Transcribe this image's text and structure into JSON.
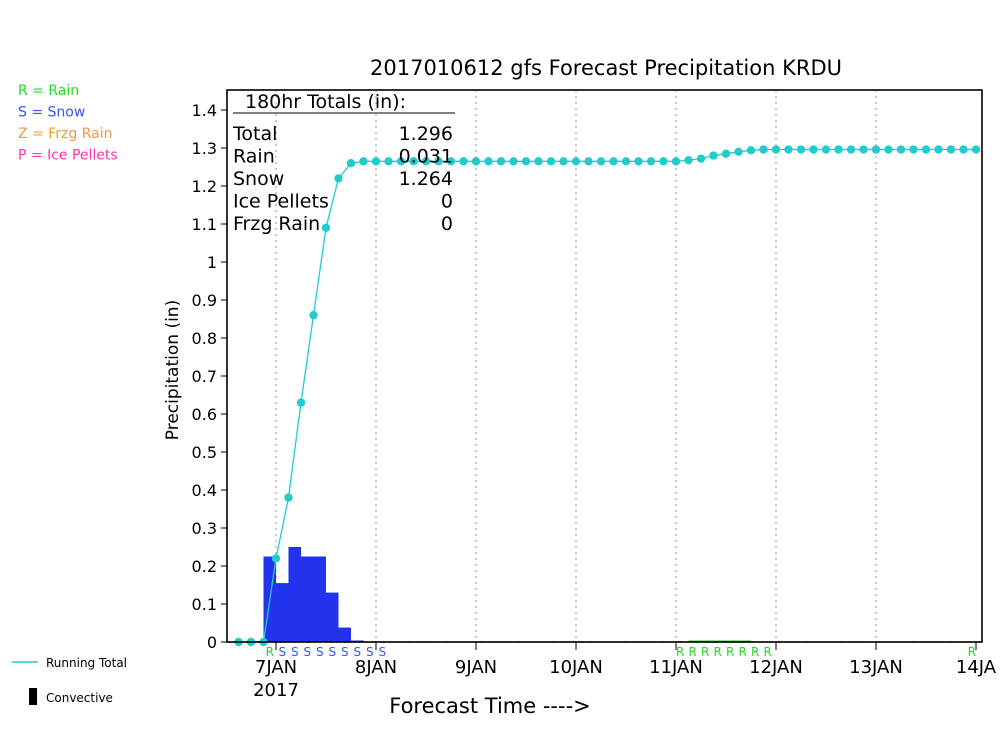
{
  "chart_data": {
    "type": "line",
    "title": "2017010612 gfs Forecast Precipitation KRDU",
    "xlabel": "Forecast Time ---->",
    "ylabel": "Precipitation (in)",
    "ylim": [
      0,
      1.42
    ],
    "y_ticks": [
      0,
      0.1,
      0.2,
      0.3,
      0.4,
      0.5,
      0.6,
      0.7,
      0.8,
      0.9,
      1,
      1.1,
      1.2,
      1.3,
      1.4
    ],
    "xlim_hours": [
      -6,
      180
    ],
    "x_ticks": [
      {
        "hour": 6,
        "label": "7JAN",
        "sublabel": "2017"
      },
      {
        "hour": 30,
        "label": "8JAN"
      },
      {
        "hour": 54,
        "label": "9JAN"
      },
      {
        "hour": 78,
        "label": "10JAN"
      },
      {
        "hour": 102,
        "label": "11JAN"
      },
      {
        "hour": 126,
        "label": "12JAN"
      },
      {
        "hour": 150,
        "label": "13JAN"
      },
      {
        "hour": 174,
        "label": "14JA"
      }
    ],
    "grid": "vertical-dotted",
    "legend": [
      {
        "key": "R",
        "text": "R = Rain",
        "color": "#22dd22"
      },
      {
        "key": "S",
        "text": "S = Snow",
        "color": "#3355ff"
      },
      {
        "key": "Z",
        "text": "Z = Frzg Rain",
        "color": "#ee9944"
      },
      {
        "key": "P",
        "text": "P = Ice Pellets",
        "color": "#ff33aa"
      }
    ],
    "bottom_legend": {
      "line": "Running Total",
      "bar": "Convective"
    },
    "totals_box": {
      "header": "180hr Totals (in):",
      "rows": [
        {
          "label": "Total",
          "value": "1.296"
        },
        {
          "label": "Rain",
          "value": "0.031"
        },
        {
          "label": "Snow",
          "value": "1.264"
        },
        {
          "label": "Ice Pellets",
          "value": "0"
        },
        {
          "label": "Frzg Rain",
          "value": "0"
        }
      ]
    },
    "series": [
      {
        "name": "Running Total",
        "color": "#22cccc",
        "x_hours": [
          -3,
          0,
          3,
          6,
          9,
          12,
          15,
          18,
          21,
          24,
          27,
          30,
          33,
          36,
          39,
          42,
          45,
          48,
          51,
          54,
          57,
          60,
          63,
          66,
          69,
          72,
          75,
          78,
          81,
          84,
          87,
          90,
          93,
          96,
          99,
          102,
          105,
          108,
          111,
          114,
          117,
          120,
          123,
          126,
          129,
          132,
          135,
          138,
          141,
          144,
          147,
          150,
          153,
          156,
          159,
          162,
          165,
          168,
          171,
          174
        ],
        "values": [
          0,
          0,
          0,
          0.22,
          0.38,
          0.63,
          0.86,
          1.09,
          1.22,
          1.26,
          1.265,
          1.265,
          1.265,
          1.265,
          1.265,
          1.265,
          1.265,
          1.265,
          1.265,
          1.265,
          1.265,
          1.265,
          1.265,
          1.265,
          1.265,
          1.265,
          1.265,
          1.265,
          1.265,
          1.265,
          1.265,
          1.265,
          1.265,
          1.265,
          1.265,
          1.265,
          1.268,
          1.272,
          1.28,
          1.285,
          1.29,
          1.294,
          1.296,
          1.296,
          1.296,
          1.296,
          1.296,
          1.296,
          1.296,
          1.296,
          1.296,
          1.296,
          1.296,
          1.296,
          1.296,
          1.296,
          1.296,
          1.296,
          1.296,
          1.296
        ]
      }
    ],
    "bars": {
      "snow_color": "#2233ee",
      "rain_color": "#22cc22",
      "snow": [
        {
          "hour_start": 3,
          "hour_end": 6,
          "value": 0.225
        },
        {
          "hour_start": 6,
          "hour_end": 9,
          "value": 0.155
        },
        {
          "hour_start": 9,
          "hour_end": 12,
          "value": 0.25
        },
        {
          "hour_start": 12,
          "hour_end": 18,
          "value": 0.225
        },
        {
          "hour_start": 18,
          "hour_end": 21,
          "value": 0.13
        },
        {
          "hour_start": 21,
          "hour_end": 24,
          "value": 0.038
        },
        {
          "hour_start": 24,
          "hour_end": 27,
          "value": 0.004
        }
      ],
      "rain": [
        {
          "hour_start": 105,
          "hour_end": 120,
          "value": 0.004
        }
      ]
    },
    "ptype_markers": [
      {
        "hour": 4.5,
        "letter": "R",
        "color": "#22dd22"
      },
      {
        "hour": 7.5,
        "letter": "S",
        "color": "#3355ff"
      },
      {
        "hour": 10.5,
        "letter": "S",
        "color": "#3355ff"
      },
      {
        "hour": 13.5,
        "letter": "S",
        "color": "#3355ff"
      },
      {
        "hour": 16.5,
        "letter": "S",
        "color": "#3355ff"
      },
      {
        "hour": 19.5,
        "letter": "S",
        "color": "#3355ff"
      },
      {
        "hour": 22.5,
        "letter": "S",
        "color": "#3355ff"
      },
      {
        "hour": 25.5,
        "letter": "S",
        "color": "#3355ff"
      },
      {
        "hour": 28.5,
        "letter": "S",
        "color": "#3355ff"
      },
      {
        "hour": 31.5,
        "letter": "S",
        "color": "#3355ff"
      },
      {
        "hour": 103,
        "letter": "R",
        "color": "#22dd22"
      },
      {
        "hour": 106,
        "letter": "R",
        "color": "#22dd22"
      },
      {
        "hour": 109,
        "letter": "R",
        "color": "#22dd22"
      },
      {
        "hour": 112,
        "letter": "R",
        "color": "#22dd22"
      },
      {
        "hour": 115,
        "letter": "R",
        "color": "#22dd22"
      },
      {
        "hour": 118,
        "letter": "R",
        "color": "#22dd22"
      },
      {
        "hour": 121,
        "letter": "R",
        "color": "#22dd22"
      },
      {
        "hour": 124,
        "letter": "R",
        "color": "#22dd22"
      },
      {
        "hour": 173,
        "letter": "R",
        "color": "#22dd22"
      }
    ],
    "zero_line_color": "#cc3333"
  }
}
